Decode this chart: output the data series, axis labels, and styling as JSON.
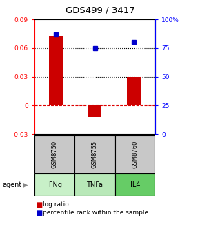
{
  "title": "GDS499 / 3417",
  "samples": [
    "GSM8750",
    "GSM8755",
    "GSM8760"
  ],
  "agents": [
    "IFNg",
    "TNFa",
    "IL4"
  ],
  "log_ratios": [
    0.072,
    -0.012,
    0.03
  ],
  "percentile_ranks": [
    87,
    75,
    80
  ],
  "ylim_left": [
    -0.03,
    0.09
  ],
  "ylim_right": [
    0,
    100
  ],
  "yticks_left": [
    -0.03,
    0.0,
    0.03,
    0.06,
    0.09
  ],
  "ytick_labels_left": [
    "-0.03",
    "0",
    "0.03",
    "0.06",
    "0.09"
  ],
  "yticks_right": [
    0,
    25,
    50,
    75,
    100
  ],
  "ytick_labels_right": [
    "0",
    "25",
    "50",
    "75",
    "100%"
  ],
  "bar_color": "#cc0000",
  "dot_color": "#0000cc",
  "zero_line_color": "#dd0000",
  "cell_gray": "#c8c8c8",
  "agent_colors": [
    "#c8f0c8",
    "#b8e8b8",
    "#66cc66"
  ],
  "bar_width": 0.35,
  "dotted_lines": [
    0.03,
    0.06
  ]
}
